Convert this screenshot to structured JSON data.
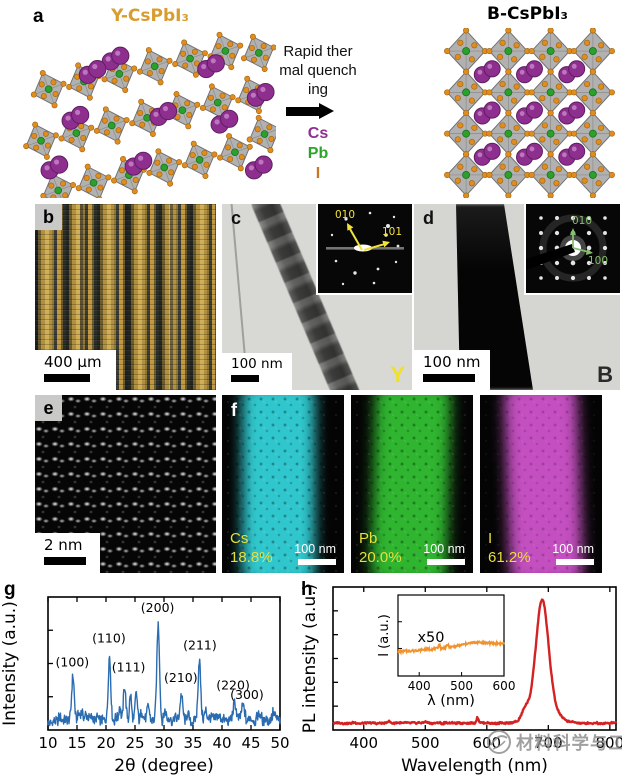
{
  "figure": {
    "panel_a": {
      "label": "a",
      "left_title": "Y-CsPbI₃",
      "left_title_color": "#d99c2e",
      "right_title": "B-CsPbI₃",
      "process_lines": [
        "Rapid ther",
        "mal quench",
        "ing"
      ],
      "legend": [
        {
          "element": "Cs",
          "color": "#8e2f90"
        },
        {
          "element": "Pb",
          "color": "#2ea32c"
        },
        {
          "element": "I",
          "color": "#c8761f"
        }
      ],
      "atom_colors": {
        "cs": "#8e2f90",
        "pb": "#2ca02c",
        "i": "#e08c1e"
      }
    },
    "panel_b": {
      "label": "b",
      "scalebar": "400 μm"
    },
    "panel_c": {
      "label": "c",
      "scalebar": "100 nm",
      "tag": "Y",
      "inset_axes": [
        "010",
        "101"
      ],
      "arrow_color": "#f2e23a"
    },
    "panel_d": {
      "label": "d",
      "scalebar": "100 nm",
      "tag": "B",
      "inset_axes": [
        "010",
        "100"
      ],
      "arrow_color": "#86bd6e"
    },
    "panel_e": {
      "label": "e",
      "scalebar": "2 nm"
    },
    "panel_f": {
      "label": "f",
      "maps": [
        {
          "element": "Cs",
          "percent": "18.8%",
          "scalebar": "100 nm",
          "color": "#2fc7cd"
        },
        {
          "element": "Pb",
          "percent": "20.0%",
          "scalebar": "100 nm",
          "color": "#2fb52f"
        },
        {
          "element": "I",
          "percent": "61.2%",
          "scalebar": "100 nm",
          "color": "#c44fc0"
        }
      ]
    },
    "watermark": "材料科学与工程"
  },
  "chart_data": [
    {
      "id": "xrd",
      "type": "line",
      "panel_label": "g",
      "xlabel": "2θ (degree)",
      "ylabel": "Intensity (a.u.)",
      "xlim": [
        10,
        50
      ],
      "xticks": [
        10,
        15,
        20,
        25,
        30,
        35,
        40,
        45,
        50
      ],
      "grid": false,
      "line_color": "#2b6cb0",
      "baseline": 0.055,
      "noise": 0.042,
      "peaks": [
        {
          "x": 14.3,
          "h": 0.36,
          "w": 0.22,
          "label": "(100)",
          "lx": 14.2,
          "ly": 0.5
        },
        {
          "x": 16.0,
          "h": 0.05,
          "w": 0.6
        },
        {
          "x": 20.6,
          "h": 0.55,
          "w": 0.22,
          "label": "(110)",
          "lx": 20.5,
          "ly": 0.7
        },
        {
          "x": 22.4,
          "h": 0.12,
          "w": 0.18
        },
        {
          "x": 23.2,
          "h": 0.28,
          "w": 0.2,
          "label": "(111)",
          "lx": 23.9,
          "ly": 0.46
        },
        {
          "x": 24.2,
          "h": 0.22,
          "w": 0.18
        },
        {
          "x": 25.2,
          "h": 0.24,
          "w": 0.2
        },
        {
          "x": 26.1,
          "h": 0.08,
          "w": 0.2
        },
        {
          "x": 27.3,
          "h": 0.1,
          "w": 0.2
        },
        {
          "x": 29.0,
          "h": 0.8,
          "w": 0.24,
          "label": "(200)",
          "lx": 28.9,
          "ly": 0.95
        },
        {
          "x": 30.2,
          "h": 0.08,
          "w": 0.2
        },
        {
          "x": 33.0,
          "h": 0.2,
          "w": 0.22,
          "label": "(210)",
          "lx": 32.9,
          "ly": 0.37
        },
        {
          "x": 34.1,
          "h": 0.06,
          "w": 0.2
        },
        {
          "x": 36.1,
          "h": 0.48,
          "w": 0.22,
          "label": "(211)",
          "lx": 36.2,
          "ly": 0.64
        },
        {
          "x": 37.1,
          "h": 0.08,
          "w": 0.2
        },
        {
          "x": 39.2,
          "h": 0.05,
          "w": 0.25
        },
        {
          "x": 42.2,
          "h": 0.13,
          "w": 0.25,
          "label": "(220)",
          "lx": 41.9,
          "ly": 0.31
        },
        {
          "x": 43.6,
          "h": 0.1,
          "w": 0.25,
          "label": "(300)",
          "lx": 44.3,
          "ly": 0.23
        },
        {
          "x": 46.3,
          "h": 0.04,
          "w": 0.3
        },
        {
          "x": 48.6,
          "h": 0.05,
          "w": 0.3
        }
      ]
    },
    {
      "id": "pl",
      "type": "line",
      "panel_label": "h",
      "xlabel": "Wavelength (nm)",
      "ylabel": "PL intensity (a.u.)",
      "xlim": [
        350,
        810
      ],
      "xticks": [
        400,
        500,
        600,
        700,
        800
      ],
      "grid": false,
      "line_color": "#d42222",
      "baseline": 0.03,
      "noise": 0.006,
      "peak_nm": 690,
      "peaks": [
        {
          "x": 440,
          "h": 0.015,
          "w": 2.5
        },
        {
          "x": 500,
          "h": 0.01,
          "w": 2.5
        },
        {
          "x": 585,
          "h": 0.045,
          "w": 1.8
        },
        {
          "x": 662,
          "h": 0.06,
          "w": 5.0
        },
        {
          "x": 690,
          "h": 0.78,
          "w": 10.0
        },
        {
          "x": 691,
          "h": 0.16,
          "w": 19.0
        }
      ],
      "inset": {
        "xlabel": "λ (nm)",
        "ylabel": "I (a.u.)",
        "annotation": "x50",
        "xlim": [
          350,
          600
        ],
        "xticks": [
          400,
          500,
          600
        ],
        "line_color": "#f0922e",
        "base": 0.3,
        "rise": 0.1,
        "noise": 0.014,
        "peaks": [
          {
            "x": 447,
            "h": 0.05,
            "w": 2
          },
          {
            "x": 467,
            "h": 0.035,
            "w": 2
          },
          {
            "x": 530,
            "h": 0.04,
            "w": 30
          }
        ]
      }
    }
  ]
}
